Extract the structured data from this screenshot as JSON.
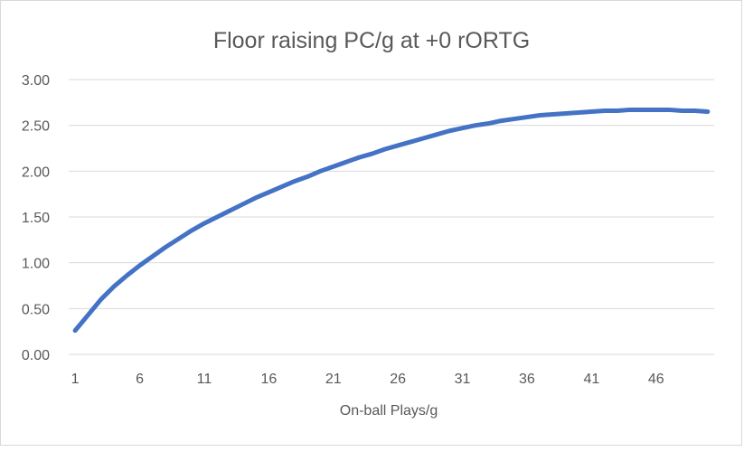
{
  "chart_data": {
    "type": "line",
    "title": "Floor raising PC/g at +0 rORTG",
    "xlabel": "On-ball Plays/g",
    "ylabel": "",
    "ylim": [
      0,
      3
    ],
    "y_ticks": [
      "0.00",
      "0.50",
      "1.00",
      "1.50",
      "2.00",
      "2.50",
      "3.00"
    ],
    "x_tick_labels": [
      "1",
      "6",
      "11",
      "16",
      "21",
      "26",
      "31",
      "36",
      "41",
      "46"
    ],
    "grid": true,
    "legend": "none",
    "series_color": "#4472c4",
    "series": [
      {
        "x": [
          1,
          2,
          3,
          4,
          5,
          6,
          7,
          8,
          9,
          10,
          11,
          12,
          13,
          14,
          15,
          16,
          17,
          18,
          19,
          20,
          21,
          22,
          23,
          24,
          25,
          26,
          27,
          28,
          29,
          30,
          31,
          32,
          33,
          34,
          35,
          36,
          37,
          38,
          39,
          40,
          41,
          42,
          43,
          44,
          45,
          46,
          47,
          48,
          49,
          50
        ],
        "values": [
          0.26,
          0.43,
          0.6,
          0.74,
          0.86,
          0.97,
          1.07,
          1.17,
          1.26,
          1.35,
          1.43,
          1.5,
          1.57,
          1.64,
          1.71,
          1.77,
          1.83,
          1.89,
          1.94,
          2.0,
          2.05,
          2.1,
          2.15,
          2.19,
          2.24,
          2.28,
          2.32,
          2.36,
          2.4,
          2.44,
          2.47,
          2.5,
          2.52,
          2.55,
          2.57,
          2.59,
          2.61,
          2.62,
          2.63,
          2.64,
          2.65,
          2.66,
          2.66,
          2.67,
          2.67,
          2.67,
          2.67,
          2.66,
          2.66,
          2.65
        ]
      }
    ]
  }
}
